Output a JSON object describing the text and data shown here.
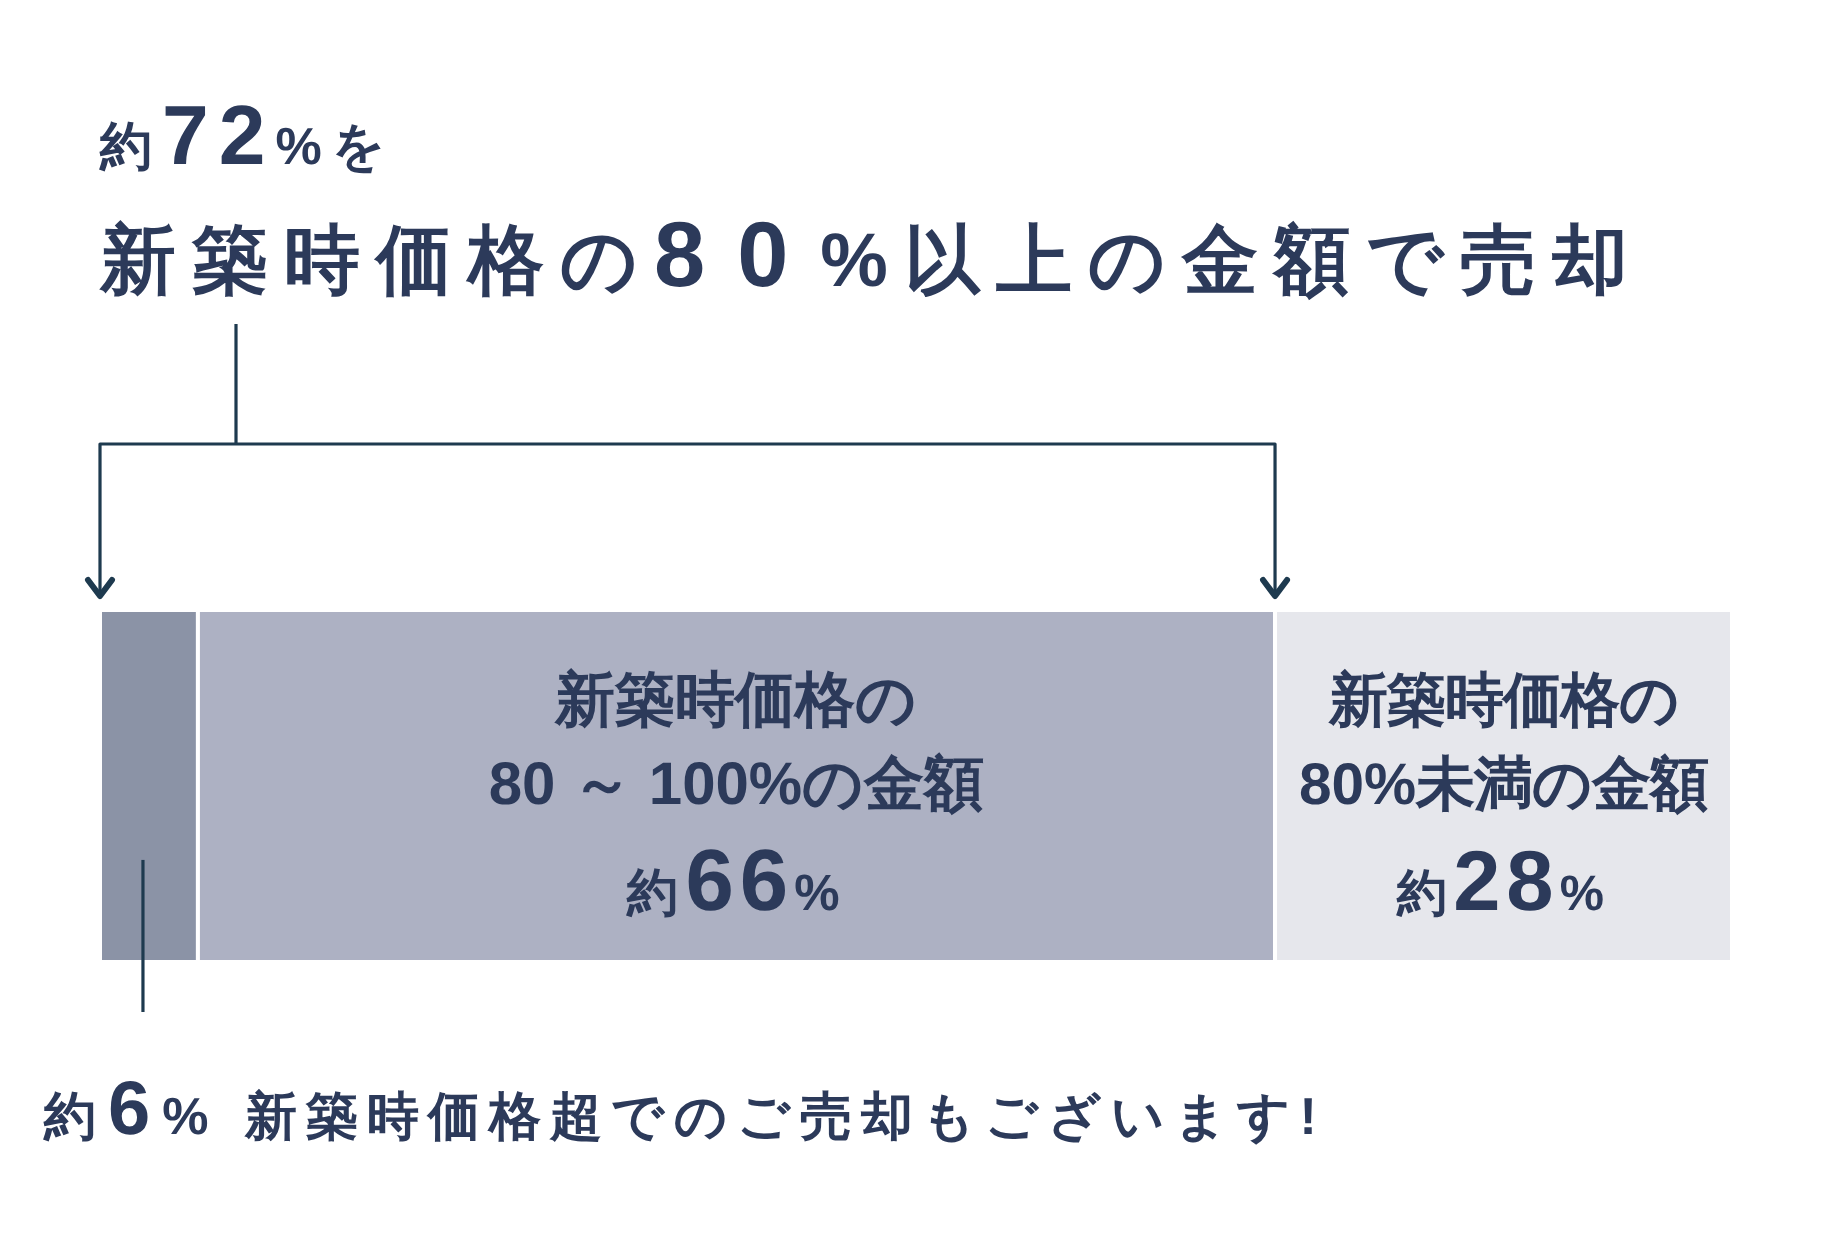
{
  "chart_data": {
    "type": "bar",
    "orientation": "horizontal",
    "stacked": true,
    "title": "約72%を",
    "subtitle": "新築時価格の80%以上の金額で売却",
    "categories": [
      null
    ],
    "xlim": [
      0,
      100
    ],
    "series": [
      {
        "name": "新築時価格超でのご売却もございます!",
        "color": "#8b93a6",
        "values": [
          6
        ],
        "value_labels": [
          "約6%"
        ]
      },
      {
        "name": "新築時価格の\n80 ～ 100%の金額",
        "color": "#adb1c3",
        "values": [
          66
        ],
        "value_labels": [
          "約66%"
        ]
      },
      {
        "name": "新築時価格の\n80%未満の金額",
        "color": "#e6e7ec",
        "values": [
          28
        ],
        "value_labels": [
          "約28%"
        ]
      }
    ]
  }
}
